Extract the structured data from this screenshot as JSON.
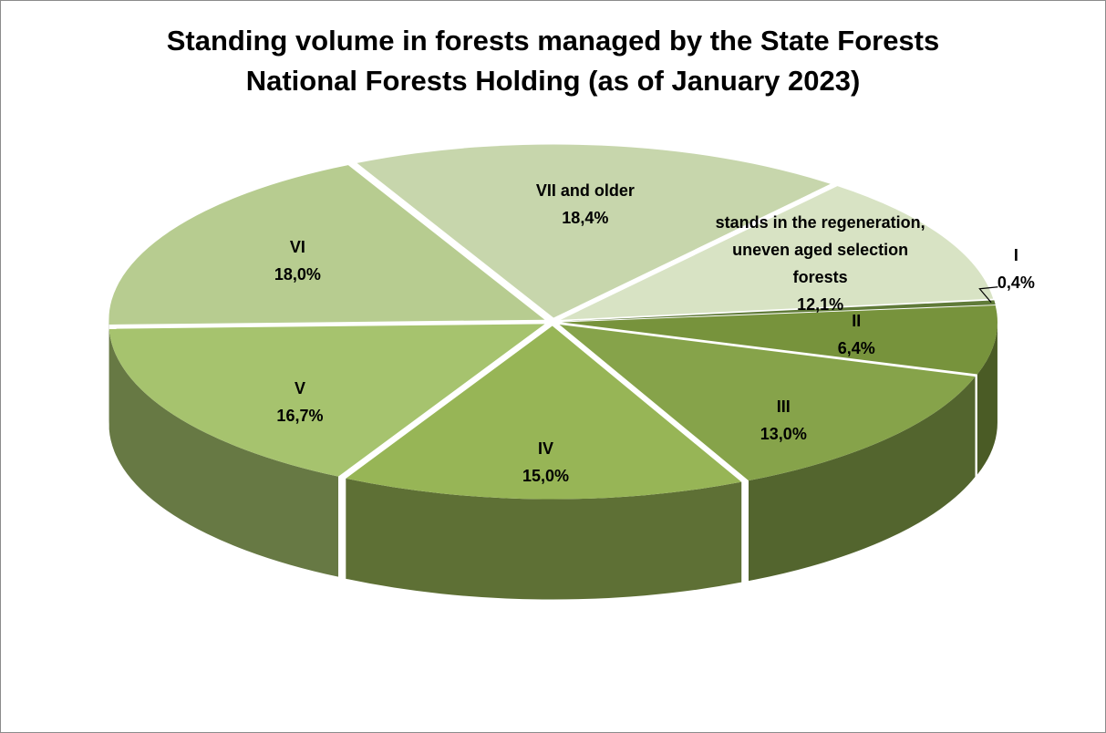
{
  "chart_data": {
    "type": "pie3d",
    "title": "Standing volume in forests managed by the State Forests\nNational Forests Holding (as of January 2023)",
    "categories": [
      "I",
      "II",
      "III",
      "IV",
      "V",
      "VI",
      "VII and older",
      "stands in the regeneration, uneven aged selection forests"
    ],
    "values": [
      0.4,
      6.4,
      13.0,
      15.0,
      16.7,
      18.0,
      18.4,
      12.1
    ],
    "value_labels": [
      "0,4%",
      "6,4%",
      "13,0%",
      "15,0%",
      "16,7%",
      "18,0%",
      "18,4%",
      "12,1%"
    ],
    "colors": [
      "#5f7a38",
      "#77933c",
      "#86a34a",
      "#97b556",
      "#a6c36e",
      "#b7cc90",
      "#c7d6ac",
      "#d8e3c4"
    ]
  }
}
